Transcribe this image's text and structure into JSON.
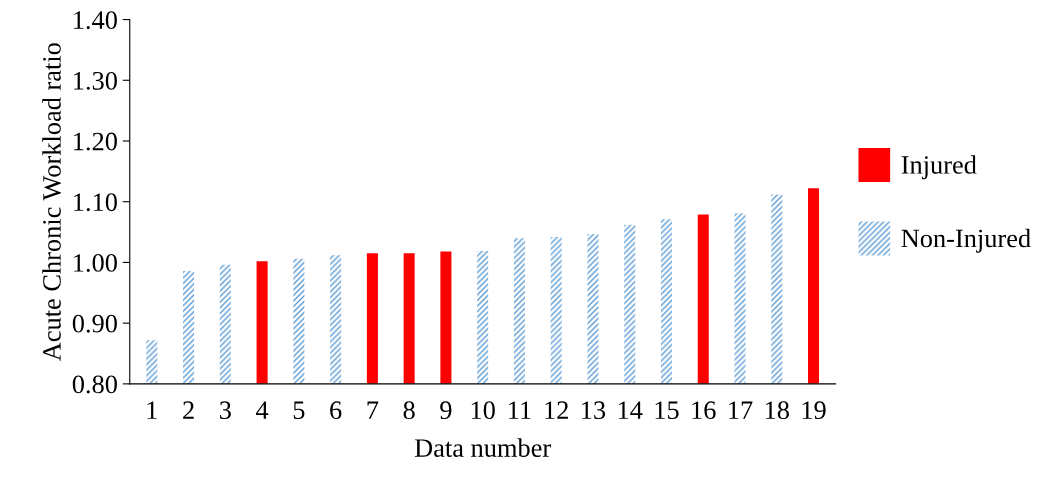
{
  "chart_data": {
    "type": "bar",
    "xlabel": "Data number",
    "ylabel": "Acute Chronic Workload ratio",
    "categories": [
      "1",
      "2",
      "3",
      "4",
      "5",
      "6",
      "7",
      "8",
      "9",
      "10",
      "11",
      "12",
      "13",
      "14",
      "15",
      "16",
      "17",
      "18",
      "19"
    ],
    "series": [
      {
        "name": "Injured",
        "color": "#ff0000",
        "values": [
          null,
          null,
          null,
          1.002,
          null,
          null,
          1.015,
          1.015,
          1.018,
          null,
          null,
          null,
          null,
          null,
          null,
          1.079,
          null,
          null,
          1.122
        ]
      },
      {
        "name": "Non-Injured",
        "color": "#5b9bd5",
        "values": [
          0.872,
          0.986,
          0.996,
          null,
          1.006,
          1.012,
          null,
          null,
          null,
          1.019,
          1.04,
          1.042,
          1.047,
          1.062,
          1.071,
          null,
          1.081,
          1.112,
          null
        ]
      }
    ],
    "ylim": [
      0.8,
      1.4
    ],
    "yticks": [
      {
        "value": 0.8,
        "label": "0.80"
      },
      {
        "value": 0.9,
        "label": "0.90"
      },
      {
        "value": 1.0,
        "label": "1.00"
      },
      {
        "value": 1.1,
        "label": "1.10"
      },
      {
        "value": 1.2,
        "label": "1.20"
      },
      {
        "value": 1.3,
        "label": "1.30"
      },
      {
        "value": 1.4,
        "label": "1.40"
      }
    ],
    "grid": false,
    "legend": "right"
  }
}
